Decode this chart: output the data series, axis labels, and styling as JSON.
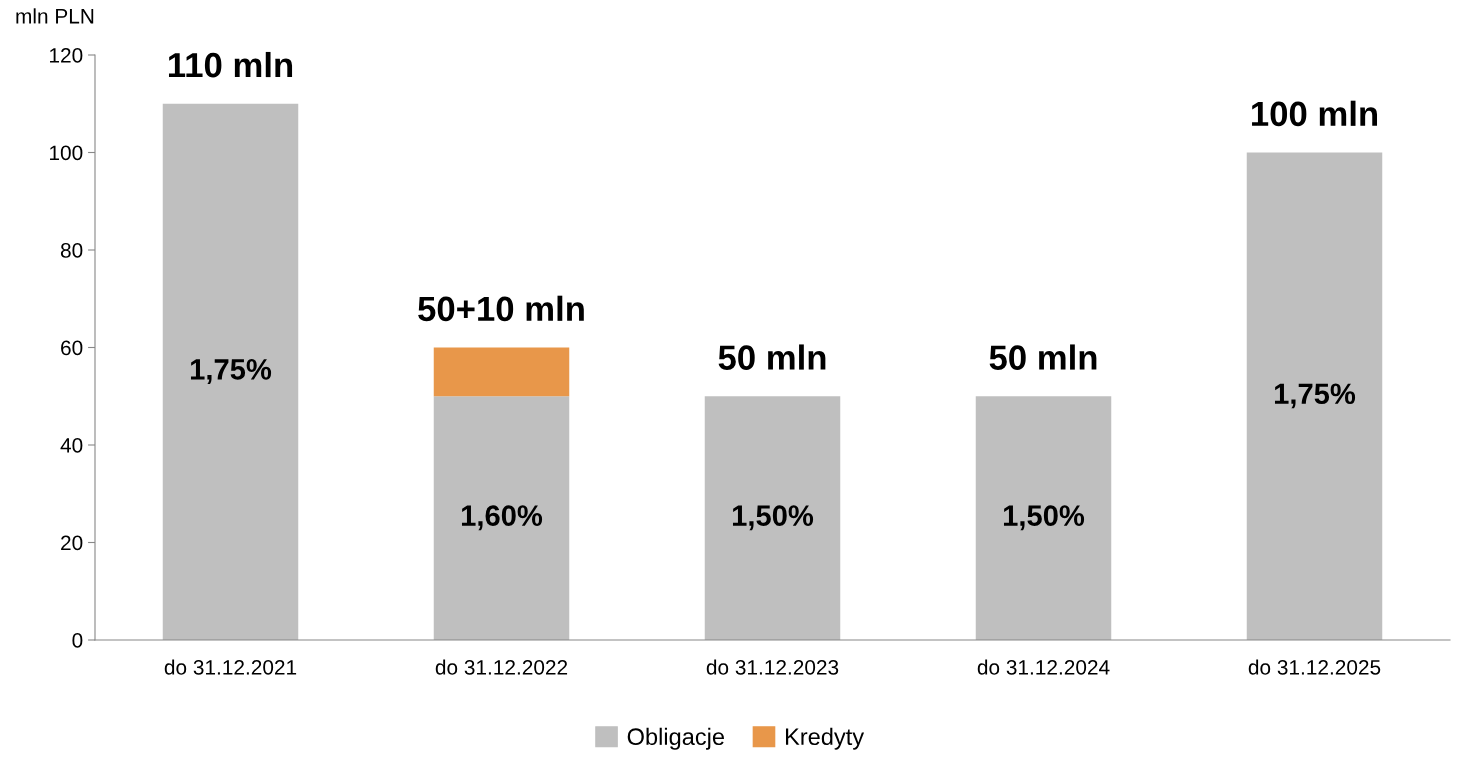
{
  "chart_data": {
    "type": "bar",
    "stacked": true,
    "ylabel": "mln PLN",
    "categories": [
      "do 31.12.2021",
      "do 31.12.2022",
      "do 31.12.2023",
      "do 31.12.2024",
      "do 31.12.2025"
    ],
    "series": [
      {
        "name": "Obligacje",
        "color": "#bfbfbf",
        "values": [
          110,
          50,
          50,
          50,
          100
        ]
      },
      {
        "name": "Kredyty",
        "color": "#e8974a",
        "values": [
          null,
          10,
          null,
          null,
          null
        ]
      }
    ],
    "annotations": [
      "1,75%",
      "1,60%",
      "1,50%",
      "1,50%",
      "1,75%"
    ],
    "totals": [
      "110 mln",
      "50+10 mln",
      "50 mln",
      "50 mln",
      "100 mln"
    ],
    "ylim": [
      0,
      120
    ],
    "yticks": [
      0,
      20,
      40,
      60,
      80,
      100,
      120
    ],
    "grid": false,
    "legend": "bottom"
  }
}
